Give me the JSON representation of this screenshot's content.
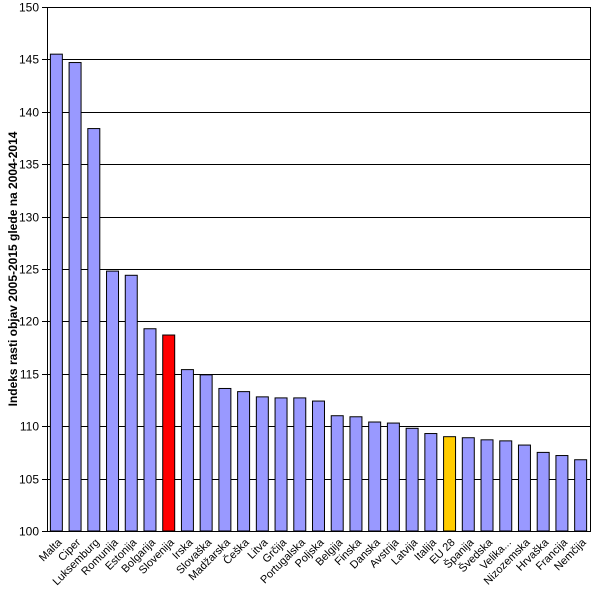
{
  "chart_data": {
    "type": "bar",
    "title": "",
    "xlabel": "",
    "ylabel": "Indeks rasti objav 2005-2015 glede na 2004-2014",
    "ylim": [
      100,
      150
    ],
    "yticks": [
      100,
      105,
      110,
      115,
      120,
      125,
      130,
      135,
      140,
      145,
      150
    ],
    "grid": true,
    "legend": "none",
    "categories": [
      "Malta",
      "Ciper",
      "Luksemburg",
      "Romunija",
      "Estonija",
      "Bolgarija",
      "Slovenija",
      "Irska",
      "Slovaška",
      "Madžarska",
      "Češka",
      "Litva",
      "Grčija",
      "Portugalska",
      "Poljska",
      "Belgija",
      "Finska",
      "Danska",
      "Avstrija",
      "Latvija",
      "Italija",
      "EU 28",
      "Španija",
      "Švedska",
      "Velika...",
      "Nizozemska",
      "Hrvaška",
      "Francija",
      "Nemčija"
    ],
    "values": [
      145.5,
      144.7,
      138.4,
      124.8,
      124.4,
      119.3,
      118.7,
      115.4,
      114.9,
      113.6,
      113.3,
      112.8,
      112.7,
      112.7,
      112.4,
      111.0,
      110.9,
      110.4,
      110.3,
      109.8,
      109.3,
      109.0,
      108.9,
      108.7,
      108.6,
      108.2,
      107.5,
      107.2,
      106.8
    ],
    "colors": {
      "default": "#9999ff",
      "highlight": "#ff0000",
      "average": "#ffcc00",
      "border": "#000000",
      "grid": "#000000"
    },
    "highlight_category": "Slovenija",
    "average_category": "EU 28"
  }
}
